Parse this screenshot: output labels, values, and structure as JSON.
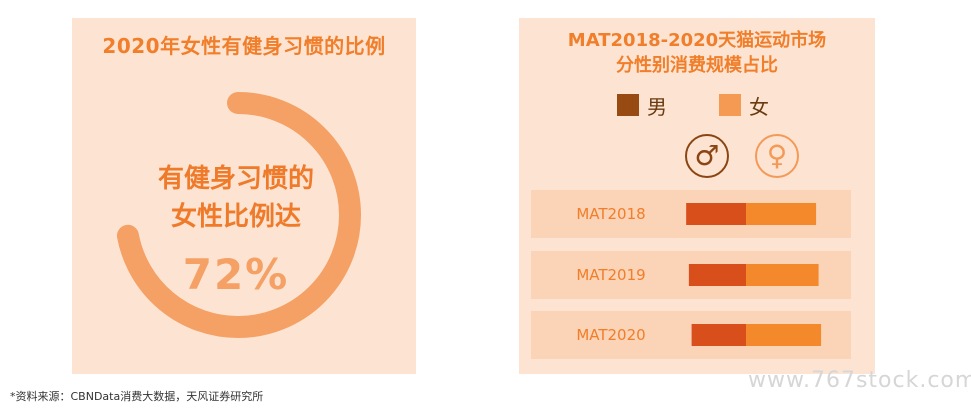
{
  "left": {
    "title": "2020年女性有健身习惯的比例",
    "line1": "有健身习惯的",
    "line2": "女性比例达",
    "value_label": "72%"
  },
  "right": {
    "title_line1": "MAT2018-2020天猫运动市场",
    "title_line2": "分性别消费规模占比",
    "legend": {
      "male_label": "男",
      "female_label": "女",
      "male_icon": "male-symbol-icon",
      "female_icon": "female-symbol-icon"
    }
  },
  "footnote": "*资料来源：CBNData消费大数据，天风证券研究所",
  "watermark": "www.767stock.com",
  "colors": {
    "panel_bg": "#fde4d2",
    "row_bg": "#fbd3b6",
    "ring": "#f5a064",
    "ring_track": "#fde4d2",
    "male_bar": "#d94f1c",
    "female_bar": "#f3892a",
    "legend_male": "#974a12",
    "legend_female": "#f59a52",
    "label": "#f07e2a"
  },
  "chart_data": [
    {
      "type": "pie",
      "title": "2020年女性有健身习惯的比例",
      "categories": [
        "有健身习惯的女性"
      ],
      "values": [
        72
      ],
      "unit": "%"
    },
    {
      "type": "bar",
      "orientation": "horizontal",
      "stacked": true,
      "title": "MAT2018-2020天猫运动市场分性别消费规模占比",
      "categories": [
        "MAT2018",
        "MAT2019",
        "MAT2020"
      ],
      "series": [
        {
          "name": "男",
          "values": [
            44,
            42,
            40
          ]
        },
        {
          "name": "女",
          "values": [
            56,
            58,
            60
          ]
        }
      ],
      "xlim": [
        0,
        100
      ]
    }
  ]
}
